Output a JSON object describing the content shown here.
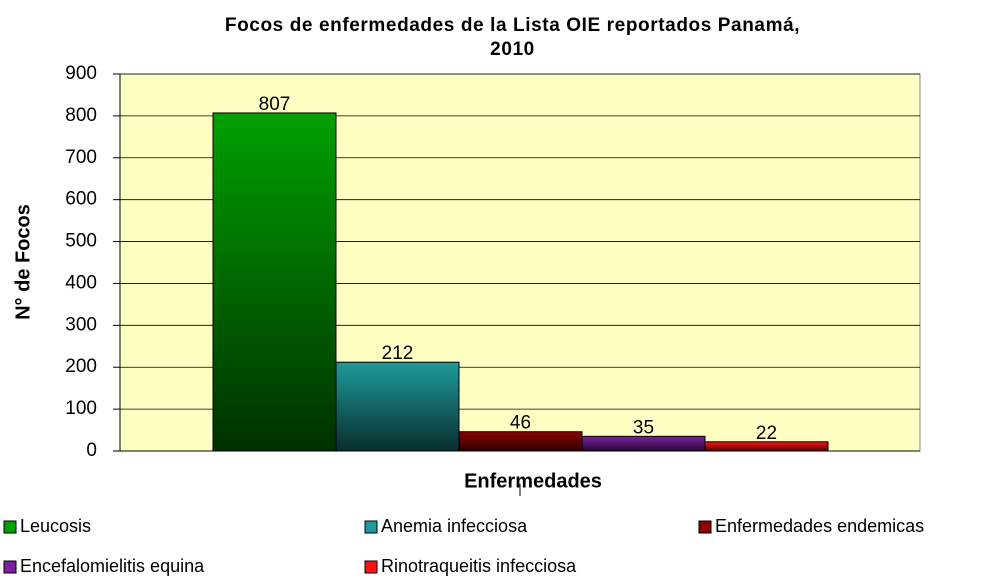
{
  "chart_data": {
    "type": "bar",
    "title": "Focos de enfermedades  de la Lista OIE reportados Panamá,\n2010",
    "xlabel": "Enfermedades",
    "ylabel": "N° de Focos",
    "categories": [
      null
    ],
    "series": [
      {
        "name": "Leucosis",
        "color": "#00a000",
        "values": [
          807
        ]
      },
      {
        "name": "Anemia infecciosa",
        "color": "#1f9a9a",
        "values": [
          212
        ]
      },
      {
        "name": "Enfermedades endemicas",
        "color": "#8b0000",
        "values": [
          46
        ]
      },
      {
        "name": "Encefalomielitis equina",
        "color": "#7a1fa0",
        "values": [
          35
        ]
      },
      {
        "name": "Rinotraqueitis infecciosa",
        "color": "#ff1010",
        "values": [
          22
        ]
      }
    ],
    "ylim": [
      0,
      900
    ],
    "yticks": [
      0,
      100,
      200,
      300,
      400,
      500,
      600,
      700,
      800,
      900
    ],
    "grid": true,
    "legend": "bottom"
  }
}
